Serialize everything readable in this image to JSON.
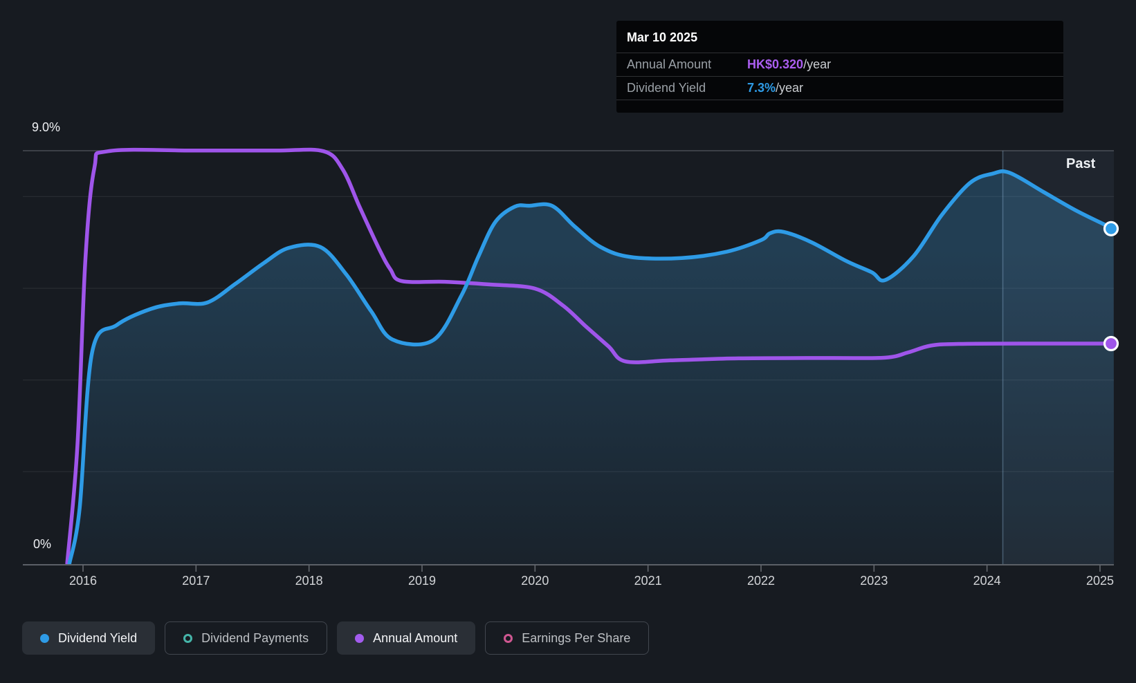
{
  "tooltip": {
    "date": "Mar 10 2025",
    "rows": [
      {
        "label": "Annual Amount",
        "value": "HK$0.320",
        "suffix": "/year",
        "value_color": "#ab5ef0"
      },
      {
        "label": "Dividend Yield",
        "value": "7.3%",
        "suffix": "/year",
        "value_color": "#2e9be6"
      }
    ]
  },
  "axis": {
    "y_top_label": "9.0%",
    "y_bottom_label": "0%",
    "years": [
      "2016",
      "2017",
      "2018",
      "2019",
      "2020",
      "2021",
      "2022",
      "2023",
      "2024",
      "2025"
    ]
  },
  "past_label": "Past",
  "legend": {
    "items": [
      {
        "label": "Dividend Yield",
        "marker": "filled-dot",
        "color": "#2e9be6",
        "active": true
      },
      {
        "label": "Dividend Payments",
        "marker": "ring",
        "color": "#45b5a9",
        "active": false
      },
      {
        "label": "Annual Amount",
        "marker": "filled-dot",
        "color": "#a35cee",
        "active": true
      },
      {
        "label": "Earnings Per Share",
        "marker": "ring",
        "color": "#cf5791",
        "active": false
      }
    ]
  },
  "chart_data": {
    "type": "area",
    "title": "Dividend history",
    "x_axis": {
      "ticks": [
        "2016",
        "2017",
        "2018",
        "2019",
        "2020",
        "2021",
        "2022",
        "2023",
        "2024",
        "2025"
      ],
      "range_years": [
        2015.85,
        2025.12
      ]
    },
    "y_axis": {
      "unit": "%",
      "range": [
        0,
        9
      ],
      "top_label": "9.0%",
      "bottom_label": "0%",
      "gridline_values_pct": [
        9,
        8,
        6,
        4,
        2
      ]
    },
    "grid": true,
    "legend_position": "bottom",
    "past_region_start_year": 2024.14,
    "latest": {
      "date": "Mar 10 2025",
      "annual_amount_hkd": 0.32,
      "dividend_yield_pct": 7.3
    },
    "series": [
      {
        "name": "Dividend Yield",
        "unit": "%",
        "color": "#2e9be6",
        "style": "line-with-area",
        "points": [
          [
            2015.88,
            0
          ],
          [
            2015.97,
            1.2
          ],
          [
            2016.08,
            4.6
          ],
          [
            2016.3,
            5.2
          ],
          [
            2016.6,
            5.55
          ],
          [
            2016.85,
            5.67
          ],
          [
            2017.1,
            5.69
          ],
          [
            2017.35,
            6.1
          ],
          [
            2017.6,
            6.55
          ],
          [
            2017.82,
            6.88
          ],
          [
            2018.1,
            6.9
          ],
          [
            2018.33,
            6.3
          ],
          [
            2018.55,
            5.5
          ],
          [
            2018.74,
            4.88
          ],
          [
            2019.1,
            4.87
          ],
          [
            2019.35,
            5.85
          ],
          [
            2019.5,
            6.7
          ],
          [
            2019.65,
            7.45
          ],
          [
            2019.82,
            7.78
          ],
          [
            2019.95,
            7.8
          ],
          [
            2020.15,
            7.8
          ],
          [
            2020.35,
            7.35
          ],
          [
            2020.58,
            6.9
          ],
          [
            2020.85,
            6.68
          ],
          [
            2021.3,
            6.66
          ],
          [
            2021.7,
            6.8
          ],
          [
            2022.0,
            7.05
          ],
          [
            2022.08,
            7.2
          ],
          [
            2022.2,
            7.23
          ],
          [
            2022.45,
            7.0
          ],
          [
            2022.75,
            6.6
          ],
          [
            2022.98,
            6.35
          ],
          [
            2023.1,
            6.18
          ],
          [
            2023.35,
            6.7
          ],
          [
            2023.6,
            7.6
          ],
          [
            2023.85,
            8.3
          ],
          [
            2024.05,
            8.5
          ],
          [
            2024.2,
            8.52
          ],
          [
            2024.5,
            8.1
          ],
          [
            2024.8,
            7.68
          ],
          [
            2025.1,
            7.32
          ],
          [
            2025.12,
            7.3
          ]
        ]
      },
      {
        "name": "Annual Amount",
        "unit": "HK$",
        "color": "#9f55ea",
        "style": "line",
        "points": [
          [
            2015.86,
            0
          ],
          [
            2015.95,
            0.17
          ],
          [
            2016.02,
            0.44
          ],
          [
            2016.1,
            0.575
          ],
          [
            2016.22,
            0.6
          ],
          [
            2017.0,
            0.601
          ],
          [
            2017.7,
            0.601
          ],
          [
            2018.13,
            0.6
          ],
          [
            2018.3,
            0.573
          ],
          [
            2018.45,
            0.518
          ],
          [
            2018.62,
            0.458
          ],
          [
            2018.72,
            0.428
          ],
          [
            2018.82,
            0.411
          ],
          [
            2019.2,
            0.41
          ],
          [
            2019.6,
            0.406
          ],
          [
            2020.0,
            0.4
          ],
          [
            2020.25,
            0.375
          ],
          [
            2020.45,
            0.345
          ],
          [
            2020.65,
            0.316
          ],
          [
            2020.8,
            0.294
          ],
          [
            2021.2,
            0.2955
          ],
          [
            2021.8,
            0.2985
          ],
          [
            2022.6,
            0.299
          ],
          [
            2023.1,
            0.2995
          ],
          [
            2023.3,
            0.307
          ],
          [
            2023.5,
            0.317
          ],
          [
            2023.75,
            0.3195
          ],
          [
            2024.5,
            0.32
          ],
          [
            2025.12,
            0.32
          ]
        ]
      }
    ]
  }
}
